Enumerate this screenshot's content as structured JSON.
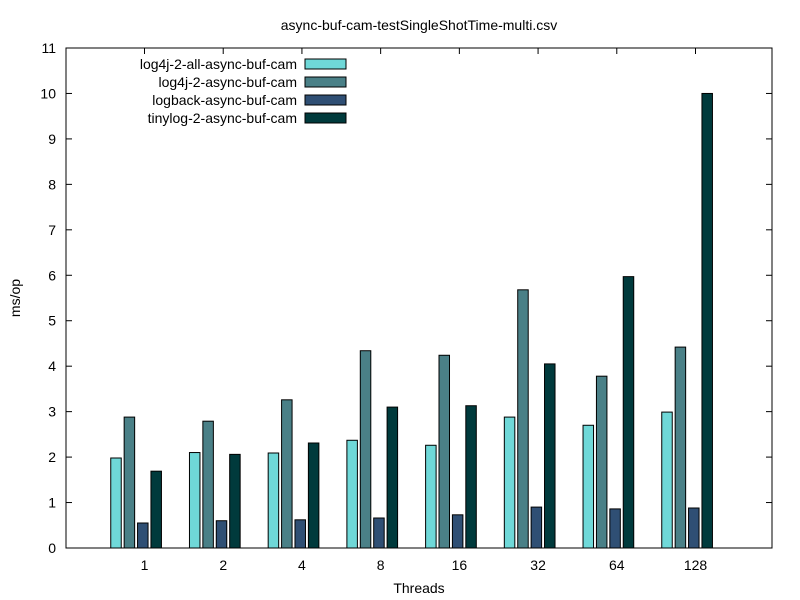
{
  "chart_data": {
    "type": "bar",
    "title": "async-buf-cam-testSingleShotTime-multi.csv",
    "xlabel": "Threads",
    "ylabel": "ms/op",
    "ylim": [
      0,
      11
    ],
    "yticks": [
      0,
      1,
      2,
      3,
      4,
      5,
      6,
      7,
      8,
      9,
      10,
      11
    ],
    "categories": [
      "1",
      "2",
      "4",
      "8",
      "16",
      "32",
      "64",
      "128"
    ],
    "legend_position": "top-left",
    "grid": false,
    "series": [
      {
        "name": "log4j-2-all-async-buf-cam",
        "color": "#6fd8d8",
        "values": [
          1.98,
          2.1,
          2.09,
          2.37,
          2.26,
          2.88,
          2.7,
          2.99
        ]
      },
      {
        "name": "log4j-2-async-buf-cam",
        "color": "#4a8087",
        "values": [
          2.88,
          2.79,
          3.26,
          4.34,
          4.24,
          5.68,
          3.78,
          4.42
        ]
      },
      {
        "name": "logback-async-buf-cam",
        "color": "#2f4f74",
        "values": [
          0.55,
          0.6,
          0.62,
          0.66,
          0.73,
          0.9,
          0.86,
          0.88
        ]
      },
      {
        "name": "tinylog-2-async-buf-cam",
        "color": "#003a3c",
        "values": [
          1.69,
          2.06,
          2.31,
          3.1,
          3.13,
          4.05,
          5.97,
          10.0
        ]
      }
    ]
  }
}
